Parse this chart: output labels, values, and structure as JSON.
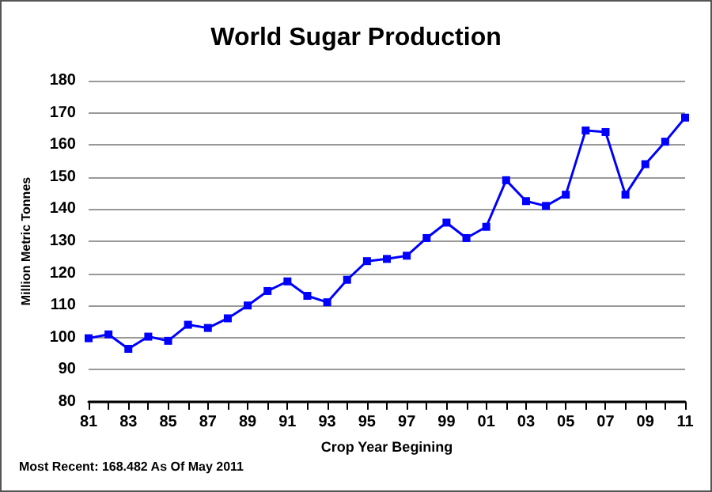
{
  "chart_data": {
    "type": "line",
    "title": "World Sugar Production",
    "xlabel": "Crop Year Begining",
    "ylabel": "Million Metric Tonnes",
    "categories": [
      "81",
      null,
      "83",
      null,
      "85",
      null,
      "87",
      null,
      "89",
      null,
      "91",
      null,
      "93",
      null,
      "95",
      null,
      "97",
      null,
      "99",
      null,
      "01",
      null,
      "03",
      null,
      "05",
      null,
      "07",
      null,
      "09",
      null,
      "11"
    ],
    "series": [
      {
        "color": "#0000ff",
        "values": [
          99.8,
          101,
          96.5,
          100.3,
          99,
          104,
          103,
          106,
          110,
          114.5,
          117.5,
          113,
          111,
          118,
          123.8,
          124.5,
          125.5,
          131,
          135.8,
          131,
          134.5,
          149,
          142.5,
          141,
          144.5,
          164.5,
          164,
          144.5,
          154,
          161,
          168.5
        ]
      }
    ],
    "ylim": [
      80,
      180
    ],
    "yticks": [
      80,
      90,
      100,
      110,
      120,
      130,
      140,
      150,
      160,
      170,
      180
    ],
    "grid": "y",
    "marker": "square",
    "line_style": "solid",
    "annotations": [
      "Most Recent: 168.482 As Of May 2011"
    ]
  }
}
